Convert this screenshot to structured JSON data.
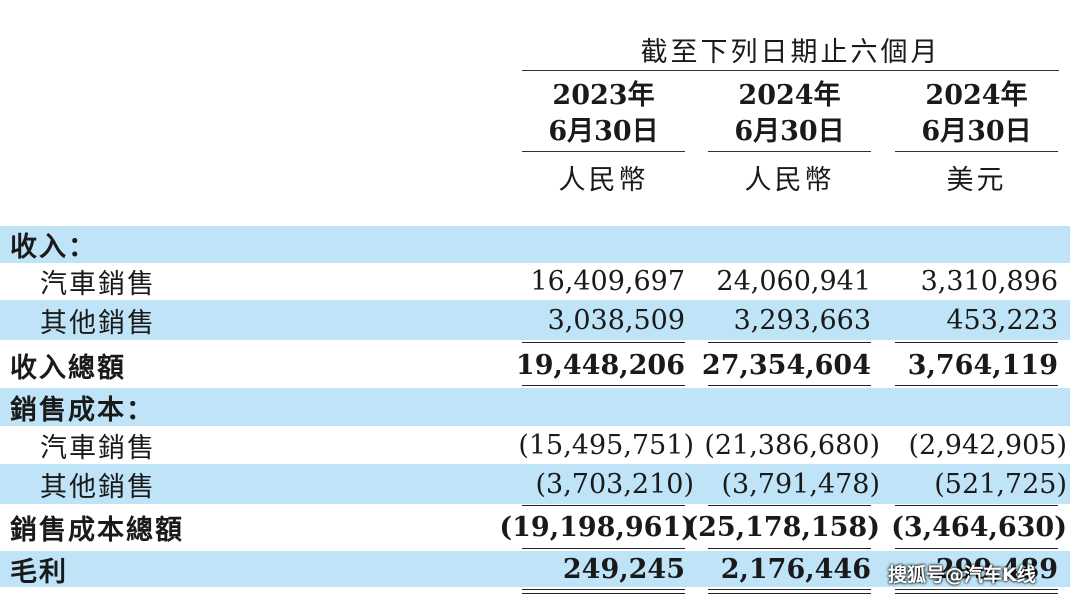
{
  "header": {
    "period_title": "截至下列日期止六個月",
    "columns": [
      {
        "year": "2023年",
        "date": "6月30日",
        "currency": "人民幣"
      },
      {
        "year": "2024年",
        "date": "6月30日",
        "currency": "人民幣"
      },
      {
        "year": "2024年",
        "date": "6月30日",
        "currency": "美元"
      }
    ]
  },
  "rows": [
    {
      "label": "收入：",
      "values": [
        "",
        "",
        ""
      ]
    },
    {
      "label": "汽車銷售",
      "values": [
        "16,409,697",
        "24,060,941",
        "3,310,896"
      ]
    },
    {
      "label": "其他銷售",
      "values": [
        "3,038,509",
        "3,293,663",
        "453,223"
      ]
    },
    {
      "label": "收入總額",
      "values": [
        "19,448,206",
        "27,354,604",
        "3,764,119"
      ]
    },
    {
      "label": "銷售成本：",
      "values": [
        "",
        "",
        ""
      ]
    },
    {
      "label": "汽車銷售",
      "values": [
        "(15,495,751)",
        "(21,386,680)",
        "(2,942,905)"
      ]
    },
    {
      "label": "其他銷售",
      "values": [
        "(3,703,210)",
        "(3,791,478)",
        "(521,725)"
      ]
    },
    {
      "label": "銷售成本總額",
      "values": [
        "(19,198,961)",
        "(25,178,158)",
        "(3,464,630)"
      ]
    },
    {
      "label": "毛利",
      "values": [
        "249,245",
        "2,176,446",
        "299,489"
      ]
    }
  ],
  "watermark": "搜狐号@汽车K线",
  "colors": {
    "row_shade": "#bfe4f8",
    "text": "#1a1a1a"
  }
}
